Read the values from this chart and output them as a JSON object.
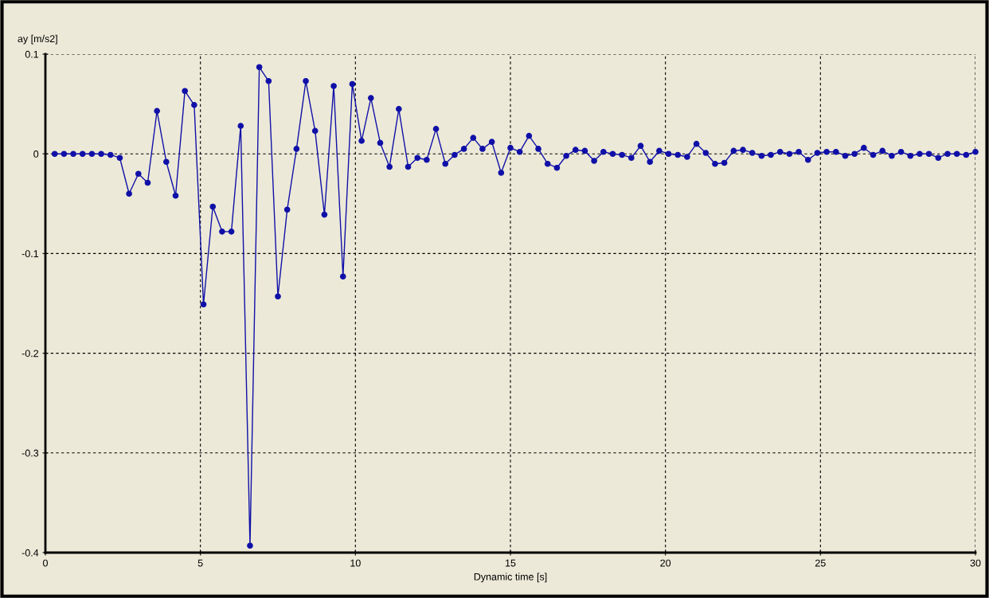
{
  "chart_data": {
    "type": "line",
    "xlabel": "Dynamic time [s]",
    "ylabel": "ay [m/s2]",
    "xlim": [
      0,
      30
    ],
    "xticks": [
      0,
      5,
      10,
      15,
      20,
      25,
      30
    ],
    "ylim": [
      -0.4,
      0.1
    ],
    "yticks": [
      -0.4,
      -0.3,
      -0.2,
      -0.1,
      0,
      0.1
    ],
    "grid": true,
    "marker": "circle",
    "line_style": "solid",
    "series": [
      {
        "color": "#1010a8",
        "x": [
          0.3,
          0.6,
          0.9,
          1.2,
          1.5,
          1.8,
          2.1,
          2.4,
          2.7,
          3.0,
          3.3,
          3.6,
          3.9,
          4.2,
          4.5,
          4.8,
          5.1,
          5.4,
          5.7,
          6.0,
          6.3,
          6.6,
          6.9,
          7.2,
          7.5,
          7.8,
          8.1,
          8.4,
          8.7,
          9.0,
          9.3,
          9.6,
          9.9,
          10.2,
          10.5,
          10.8,
          11.1,
          11.4,
          11.7,
          12.0,
          12.3,
          12.6,
          12.9,
          13.2,
          13.5,
          13.8,
          14.1,
          14.4,
          14.7,
          15.0,
          15.3,
          15.6,
          15.9,
          16.2,
          16.5,
          16.8,
          17.1,
          17.4,
          17.7,
          18.0,
          18.3,
          18.6,
          18.9,
          19.2,
          19.5,
          19.8,
          20.1,
          20.4,
          20.7,
          21.0,
          21.3,
          21.6,
          21.9,
          22.2,
          22.5,
          22.8,
          23.1,
          23.4,
          23.7,
          24.0,
          24.3,
          24.6,
          24.9,
          25.2,
          25.5,
          25.8,
          26.1,
          26.4,
          26.7,
          27.0,
          27.3,
          27.6,
          27.9,
          28.2,
          28.5,
          28.8,
          29.1,
          29.4,
          29.7,
          30.0
        ],
        "values": [
          0,
          0,
          0,
          0,
          0,
          0,
          -0.001,
          -0.004,
          -0.04,
          -0.02,
          -0.029,
          0.043,
          -0.008,
          -0.042,
          0.063,
          0.049,
          -0.151,
          -0.053,
          -0.078,
          -0.078,
          0.028,
          -0.393,
          0.087,
          0.073,
          -0.143,
          -0.056,
          0.005,
          0.073,
          0.023,
          -0.061,
          0.068,
          -0.123,
          0.07,
          0.013,
          0.056,
          0.011,
          -0.013,
          0.045,
          -0.013,
          -0.004,
          -0.006,
          0.025,
          -0.01,
          -0.001,
          0.005,
          0.016,
          0.005,
          0.012,
          -0.019,
          0.006,
          0.002,
          0.018,
          0.005,
          -0.01,
          -0.014,
          -0.002,
          0.004,
          0.003,
          -0.007,
          0.002,
          0.0,
          -0.001,
          -0.004,
          0.008,
          -0.008,
          0.003,
          0.0,
          -0.001,
          -0.003,
          0.01,
          0.001,
          -0.01,
          -0.009,
          0.003,
          0.004,
          0.001,
          -0.002,
          -0.001,
          0.002,
          0.0,
          0.002,
          -0.006,
          0.001,
          0.002,
          0.002,
          -0.002,
          0.0,
          0.006,
          -0.001,
          0.003,
          -0.002,
          0.002,
          -0.002,
          0.0,
          0.0,
          -0.004,
          0.0,
          0.0,
          -0.001,
          0.002
        ]
      }
    ]
  }
}
